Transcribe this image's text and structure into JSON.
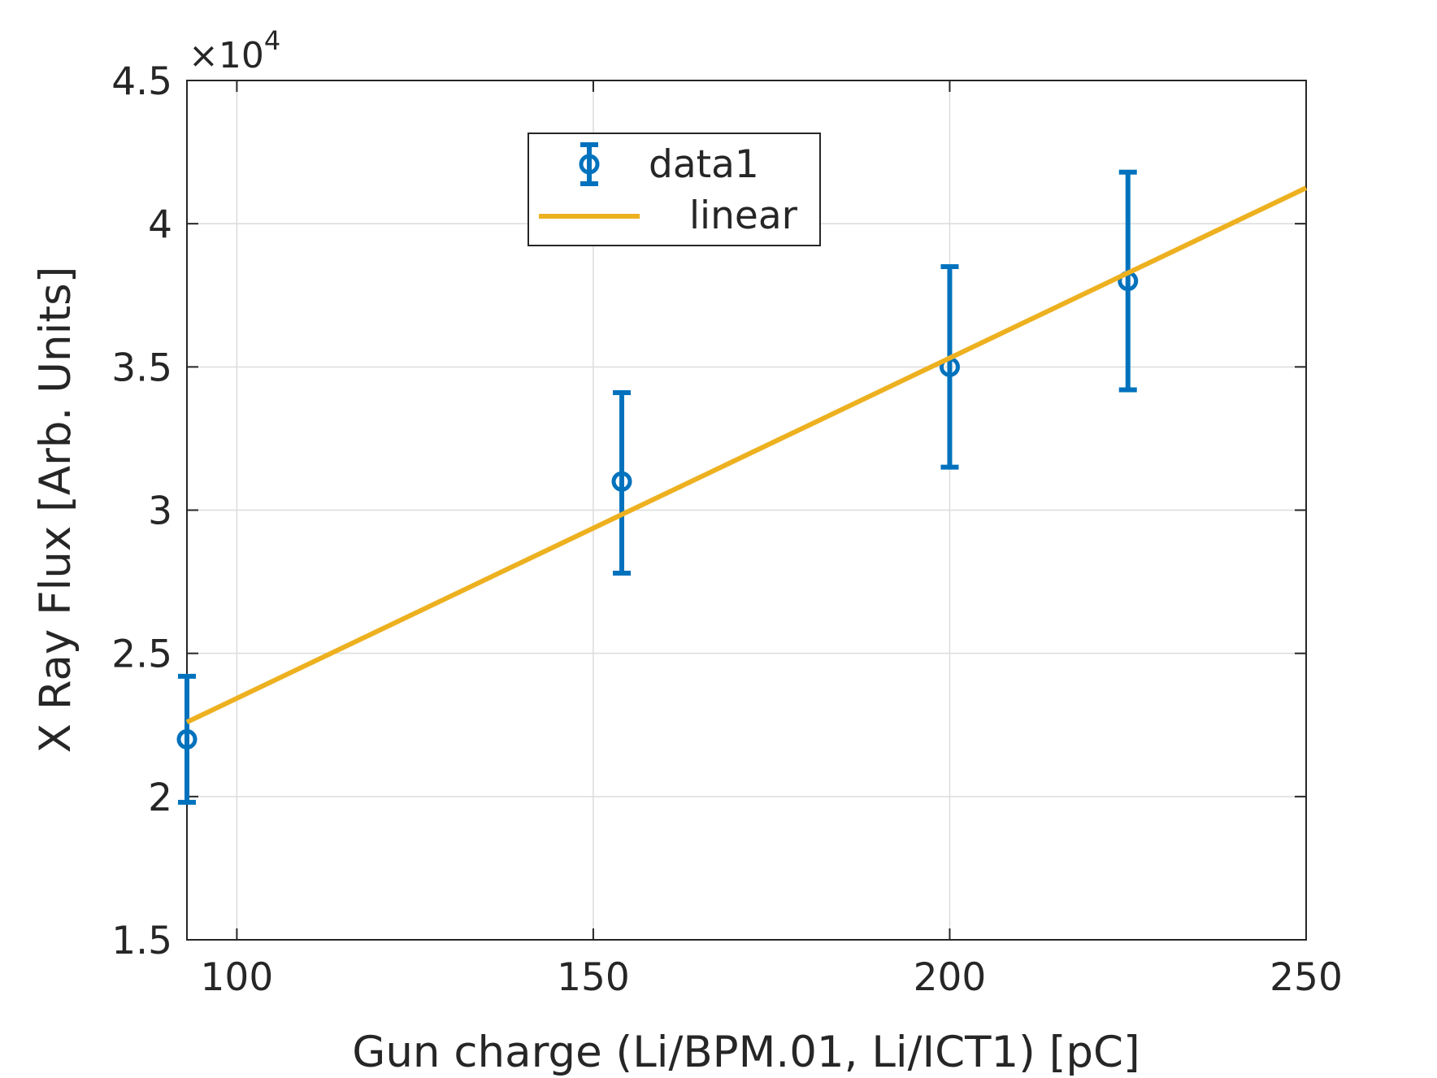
{
  "chart_data": {
    "type": "scatter",
    "xlabel": "Gun charge (Li/BPM.01, Li/ICT1) [pC]",
    "ylabel": "X Ray Flux [Arb. Units]",
    "y_exponent_label": "×10",
    "y_exponent": "4",
    "xlim": [
      93,
      250
    ],
    "ylim": [
      1.5,
      4.5
    ],
    "y_scale_factor": 10000,
    "xticks": [
      "100",
      "150",
      "200",
      "250"
    ],
    "yticks": [
      "1.5",
      "2",
      "2.5",
      "3",
      "3.5",
      "4",
      "4.5"
    ],
    "grid": true,
    "legend_position": "top-center",
    "series": [
      {
        "name": "data1",
        "kind": "errorbar",
        "color": "#0072BD",
        "x": [
          93,
          154,
          200,
          225
        ],
        "y": [
          2.2,
          3.1,
          3.5,
          3.8
        ],
        "err_low": [
          1.98,
          2.78,
          3.15,
          3.42
        ],
        "err_high": [
          2.42,
          3.41,
          3.85,
          4.18
        ]
      },
      {
        "name": "linear",
        "kind": "line",
        "color": "#EDB120",
        "x": [
          93,
          250
        ],
        "y": [
          2.26,
          4.125
        ]
      }
    ]
  }
}
